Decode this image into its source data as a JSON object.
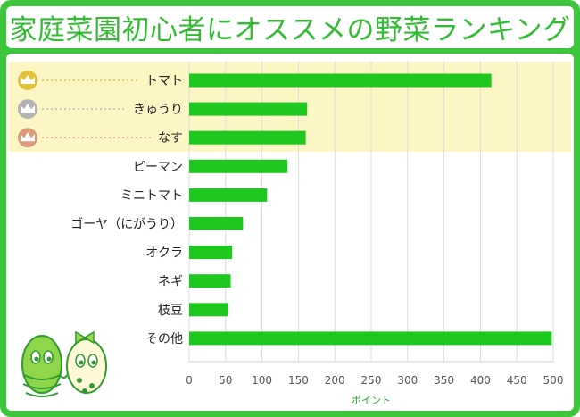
{
  "title": "家庭菜園初心者にオススメの野菜ランキング",
  "colors": {
    "frame": "#3cc63c",
    "bar": "#1ec81e",
    "highlight": "#fbf6c4",
    "gold": "#e4c03a",
    "silver": "#b3b3b3",
    "bronze": "#dd9a7a"
  },
  "icons": [
    "gold-crown-icon",
    "silver-crown-icon",
    "bronze-crown-icon",
    "egg-mascots-icon"
  ],
  "chart_data": {
    "type": "bar",
    "orientation": "horizontal",
    "categories": [
      "トマト",
      "きゅうり",
      "なす",
      "ピーマン",
      "ミニトマト",
      "ゴーヤ（にがうり）",
      "オクラ",
      "ネギ",
      "枝豆",
      "その他"
    ],
    "values": [
      415,
      162,
      160,
      135,
      107,
      74,
      59,
      57,
      54,
      498
    ],
    "title": "家庭菜園初心者にオススメの野菜ランキング",
    "xlabel": "ポイント",
    "ylabel": "",
    "xlim": [
      0,
      500
    ],
    "xticks": [
      "0",
      "50",
      "100",
      "150",
      "200",
      "250",
      "300",
      "350",
      "400",
      "450",
      "500"
    ],
    "grid": true,
    "highlighted_top": 3
  }
}
